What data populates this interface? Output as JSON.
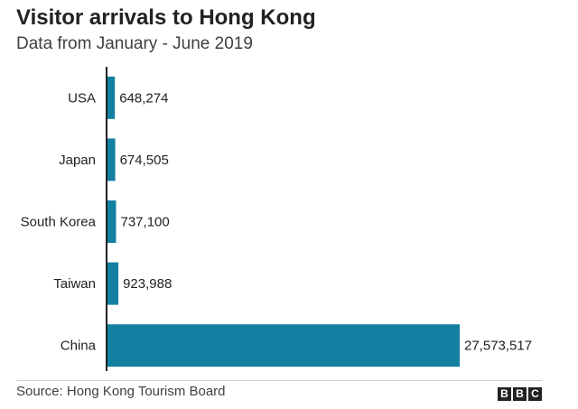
{
  "header": {
    "title": "Visitor arrivals to Hong Kong",
    "subtitle": "Data from January - June 2019"
  },
  "footer": {
    "source": "Source: Hong Kong Tourism Board",
    "logo_letters": [
      "B",
      "B",
      "C"
    ]
  },
  "colors": {
    "bar": "#1380a1",
    "axis": "#222222",
    "rule": "#cccccc"
  },
  "chart_data": {
    "type": "bar",
    "orientation": "horizontal",
    "title": "Visitor arrivals to Hong Kong",
    "subtitle": "Data from January - June 2019",
    "categories": [
      "USA",
      "Japan",
      "South Korea",
      "Taiwan",
      "China"
    ],
    "values": [
      648274,
      674505,
      737100,
      923988,
      27573517
    ],
    "value_labels": [
      "648,274",
      "674,505",
      "737,100",
      "923,988",
      "27,573,517"
    ],
    "xlabel": "",
    "ylabel": "",
    "xlim": [
      0,
      27573517
    ],
    "grid": false,
    "legend": "none"
  }
}
